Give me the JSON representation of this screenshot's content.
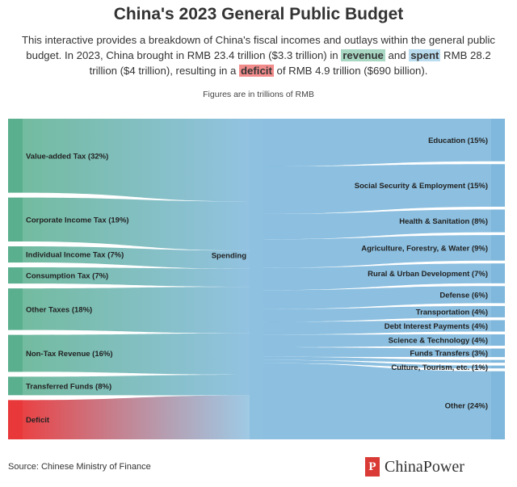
{
  "title": "China's 2023 General Public Budget",
  "description": {
    "part1": "This interactive provides a breakdown of China's fiscal incomes and outlays within the general public budget. In 2023, China brought in RMB 23.4 trillion ($3.3 trillion) in ",
    "revenue": "revenue",
    "part2": " and ",
    "spent": "spent",
    "part3": " RMB 28.2 trillion ($4 trillion), resulting in a ",
    "deficit": "deficit",
    "part4": " of RMB 4.9 trillion ($690 billion)."
  },
  "note": "Figures are in trillions of RMB",
  "source": "Source: Chinese Ministry of Finance",
  "brand": {
    "mark": "P",
    "name": "ChinaPower"
  },
  "colors": {
    "revenue": "#5aaf8f",
    "spending": "#7fb8dc",
    "deficit": "#e8383a",
    "center": "#8ec0e0"
  },
  "chart_data": {
    "type": "sankey",
    "units": "trillions of RMB",
    "center": {
      "label": "Spending"
    },
    "sources": [
      {
        "label": "Value-added Tax (32%)",
        "type": "revenue"
      },
      {
        "label": "Corporate Income Tax (19%)",
        "type": "revenue"
      },
      {
        "label": "Individual Income Tax (7%)",
        "type": "revenue"
      },
      {
        "label": "Consumption Tax (7%)",
        "type": "revenue"
      },
      {
        "label": "Other Taxes (18%)",
        "type": "revenue"
      },
      {
        "label": "Non-Tax Revenue (16%)",
        "type": "revenue"
      },
      {
        "label": "Transferred Funds (8%)",
        "type": "revenue"
      },
      {
        "label": "Deficit",
        "type": "deficit"
      }
    ],
    "source_weights": [
      32,
      19,
      7,
      7,
      18,
      16,
      8,
      17
    ],
    "targets": [
      {
        "label": "Education (15%)",
        "weight": 15
      },
      {
        "label": "Social Security & Employment (15%)",
        "weight": 15
      },
      {
        "label": "Health & Sanitation (8%)",
        "weight": 8
      },
      {
        "label": "Agriculture, Forestry, & Water (9%)",
        "weight": 9
      },
      {
        "label": "Rural & Urban Development (7%)",
        "weight": 7
      },
      {
        "label": "Defense (6%)",
        "weight": 6
      },
      {
        "label": "Transportation (4%)",
        "weight": 4
      },
      {
        "label": "Debt Interest Payments (4%)",
        "weight": 4
      },
      {
        "label": "Science & Technology (4%)",
        "weight": 4
      },
      {
        "label": "Funds Transfers (3%)",
        "weight": 3
      },
      {
        "label": "",
        "weight": 1
      },
      {
        "label": "Culture, Tourism, etc. (1%)",
        "weight": 1
      },
      {
        "label": "Other (24%)",
        "weight": 24
      }
    ]
  }
}
